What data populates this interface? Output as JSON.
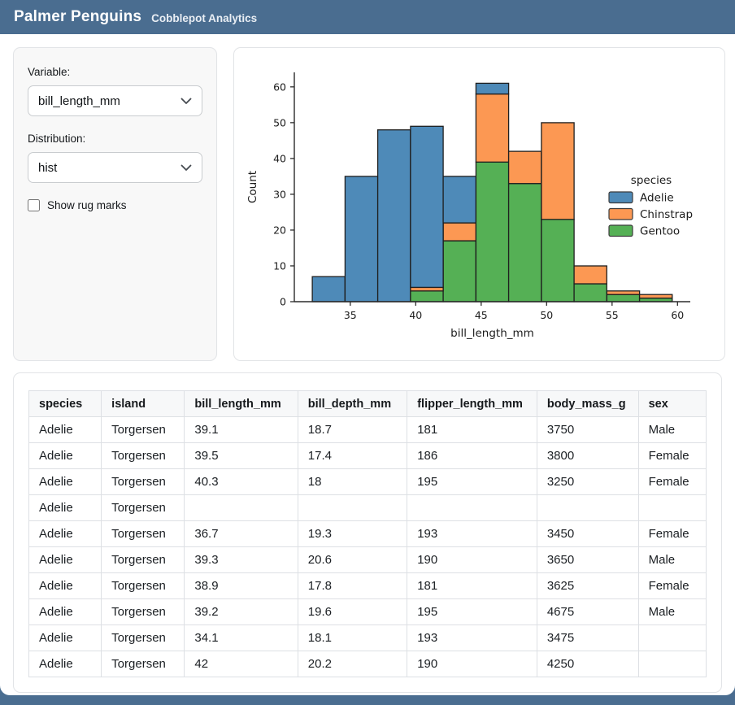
{
  "header": {
    "title": "Palmer Penguins",
    "subtitle": "Cobblepot Analytics"
  },
  "sidebar": {
    "variable_label": "Variable:",
    "variable_value": "bill_length_mm",
    "distribution_label": "Distribution:",
    "distribution_value": "hist",
    "rug_label": "Show rug marks",
    "rug_checked": false
  },
  "chart_data": {
    "type": "bar",
    "variant": "stacked-histogram",
    "title": "",
    "xlabel": "bill_length_mm",
    "ylabel": "Count",
    "background": "#ffffff",
    "grid": false,
    "despine": true,
    "edge_color": "#1f1f1f",
    "bin_edges": [
      32.1,
      34.6,
      37.1,
      39.6,
      42.1,
      44.6,
      47.1,
      49.6,
      52.1,
      54.6,
      57.1,
      59.6
    ],
    "series": [
      {
        "name": "Gentoo",
        "color": "#55b055",
        "values": [
          0,
          0,
          0,
          3,
          17,
          39,
          33,
          23,
          5,
          2,
          1
        ]
      },
      {
        "name": "Chinstrap",
        "color": "#fc9853",
        "values": [
          0,
          0,
          0,
          1,
          5,
          19,
          9,
          27,
          5,
          1,
          1
        ]
      },
      {
        "name": "Adelie",
        "color": "#4e8ab8",
        "values": [
          7,
          35,
          48,
          45,
          13,
          3,
          0,
          0,
          0,
          0,
          0
        ]
      }
    ],
    "bin_totals": [
      7,
      35,
      48,
      49,
      35,
      61,
      42,
      50,
      10,
      3,
      2
    ],
    "xticks": [
      35,
      40,
      45,
      50,
      55,
      60
    ],
    "yticks": [
      0,
      10,
      20,
      30,
      40,
      50,
      60
    ],
    "xlim": [
      30.725,
      60.975
    ],
    "ylim": [
      0,
      64.05
    ],
    "legend": {
      "position": "center-right",
      "title": "species",
      "entries": [
        {
          "label": "Adelie",
          "color": "#4e8ab8"
        },
        {
          "label": "Chinstrap",
          "color": "#fc9853"
        },
        {
          "label": "Gentoo",
          "color": "#55b055"
        }
      ]
    }
  },
  "table": {
    "columns": [
      "species",
      "island",
      "bill_length_mm",
      "bill_depth_mm",
      "flipper_length_mm",
      "body_mass_g",
      "sex"
    ],
    "rows": [
      [
        "Adelie",
        "Torgersen",
        "39.1",
        "18.7",
        "181",
        "3750",
        "Male"
      ],
      [
        "Adelie",
        "Torgersen",
        "39.5",
        "17.4",
        "186",
        "3800",
        "Female"
      ],
      [
        "Adelie",
        "Torgersen",
        "40.3",
        "18",
        "195",
        "3250",
        "Female"
      ],
      [
        "Adelie",
        "Torgersen",
        "",
        "",
        "",
        "",
        ""
      ],
      [
        "Adelie",
        "Torgersen",
        "36.7",
        "19.3",
        "193",
        "3450",
        "Female"
      ],
      [
        "Adelie",
        "Torgersen",
        "39.3",
        "20.6",
        "190",
        "3650",
        "Male"
      ],
      [
        "Adelie",
        "Torgersen",
        "38.9",
        "17.8",
        "181",
        "3625",
        "Female"
      ],
      [
        "Adelie",
        "Torgersen",
        "39.2",
        "19.6",
        "195",
        "4675",
        "Male"
      ],
      [
        "Adelie",
        "Torgersen",
        "34.1",
        "18.1",
        "193",
        "3475",
        ""
      ],
      [
        "Adelie",
        "Torgersen",
        "42",
        "20.2",
        "190",
        "4250",
        ""
      ]
    ]
  },
  "colors": {
    "header_bg": "#4a6d90",
    "card_border": "#e2e4e7",
    "sidebar_bg": "#f8f8f8"
  }
}
